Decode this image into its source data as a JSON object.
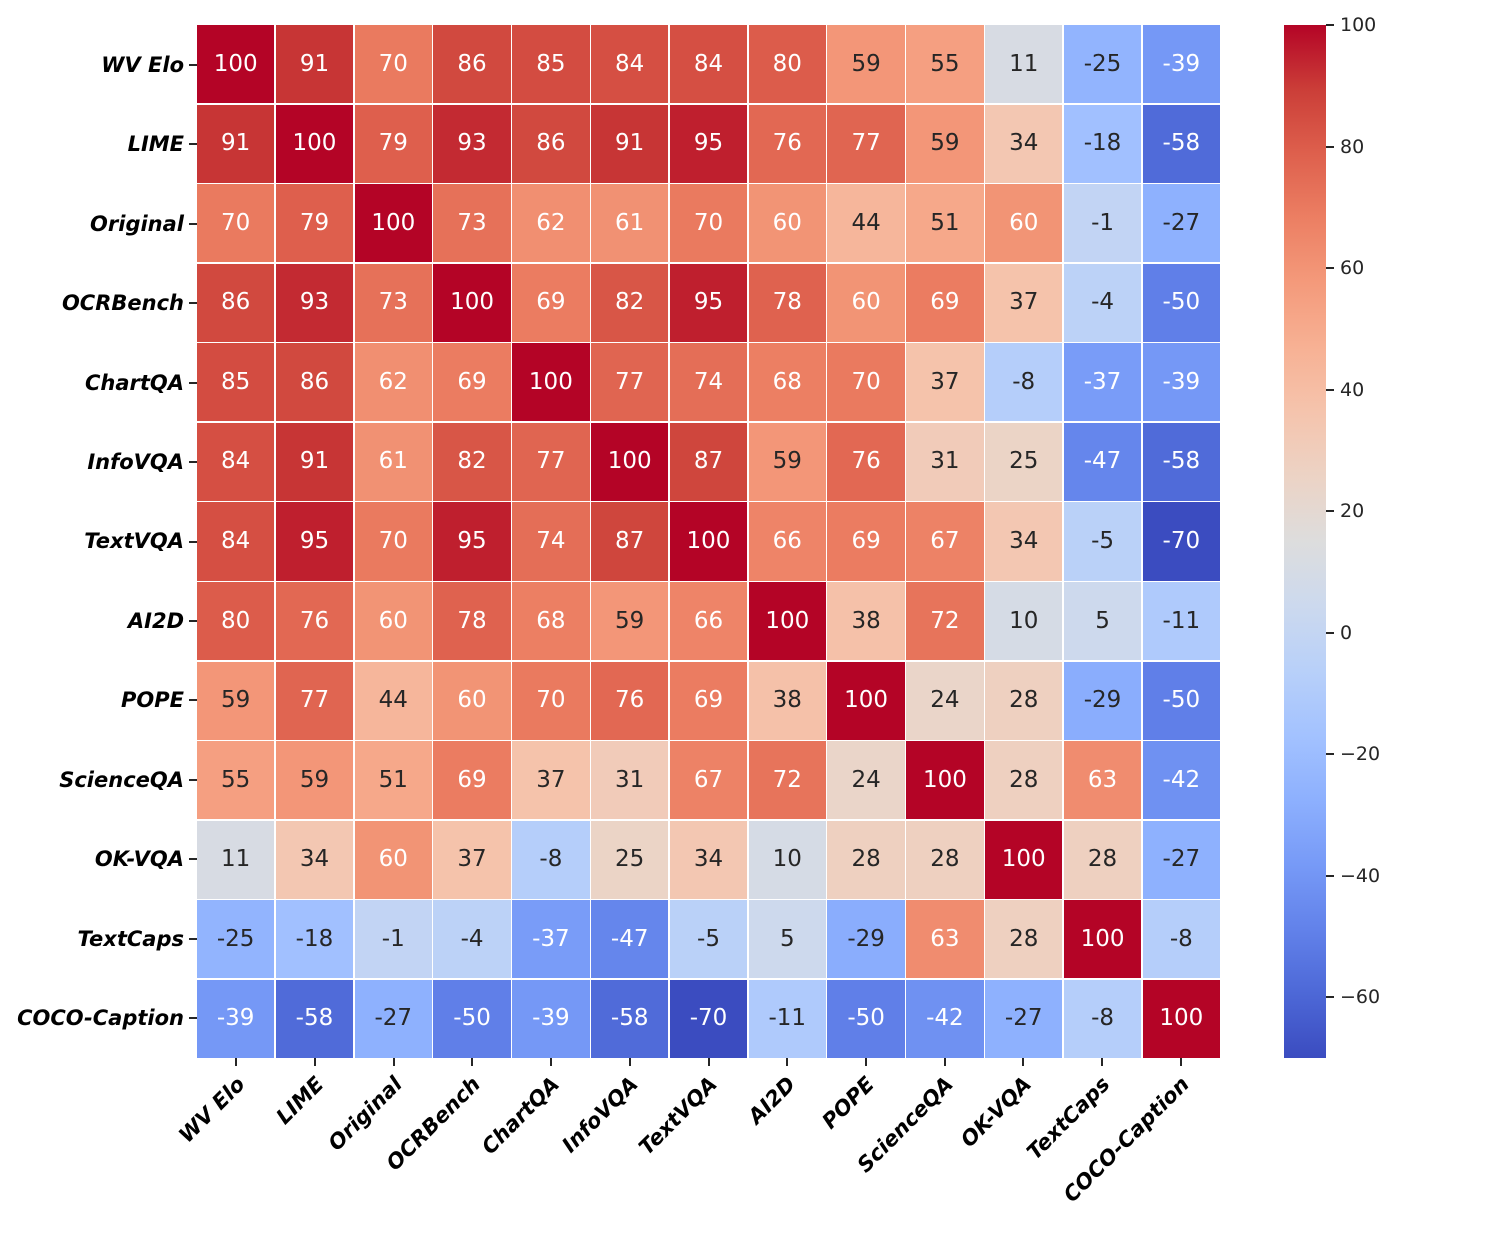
{
  "chart_data": {
    "type": "heatmap",
    "title": "",
    "labels": [
      "WV Elo",
      "LIME",
      "Original",
      "OCRBench",
      "ChartQA",
      "InfoVQA",
      "TextVQA",
      "AI2D",
      "POPE",
      "ScienceQA",
      "OK-VQA",
      "TextCaps",
      "COCO-Caption"
    ],
    "matrix": [
      [
        100,
        91,
        70,
        86,
        85,
        84,
        84,
        80,
        59,
        55,
        11,
        -25,
        -39
      ],
      [
        91,
        100,
        79,
        93,
        86,
        91,
        95,
        76,
        77,
        59,
        34,
        -18,
        -58
      ],
      [
        70,
        79,
        100,
        73,
        62,
        61,
        70,
        60,
        44,
        51,
        60,
        -1,
        -27
      ],
      [
        86,
        93,
        73,
        100,
        69,
        82,
        95,
        78,
        60,
        69,
        37,
        -4,
        -50
      ],
      [
        85,
        86,
        62,
        69,
        100,
        77,
        74,
        68,
        70,
        37,
        -8,
        -37,
        -39
      ],
      [
        84,
        91,
        61,
        82,
        77,
        100,
        87,
        59,
        76,
        31,
        25,
        -47,
        -58
      ],
      [
        84,
        95,
        70,
        95,
        74,
        87,
        100,
        66,
        69,
        67,
        34,
        -5,
        -70
      ],
      [
        80,
        76,
        60,
        78,
        68,
        59,
        66,
        100,
        38,
        72,
        10,
        5,
        -11
      ],
      [
        59,
        77,
        44,
        60,
        70,
        76,
        69,
        38,
        100,
        24,
        28,
        -29,
        -50
      ],
      [
        55,
        59,
        51,
        69,
        37,
        31,
        67,
        72,
        24,
        100,
        28,
        63,
        -42
      ],
      [
        11,
        34,
        60,
        37,
        -8,
        25,
        34,
        10,
        28,
        28,
        100,
        28,
        -27
      ],
      [
        -25,
        -18,
        -1,
        -4,
        -37,
        -47,
        -5,
        5,
        -29,
        63,
        28,
        100,
        -8
      ],
      [
        -39,
        -58,
        -27,
        -50,
        -39,
        -58,
        -70,
        -11,
        -50,
        -42,
        -27,
        -8,
        100
      ]
    ],
    "colorbar": {
      "vmin": -70,
      "vmax": 100,
      "tick_values": [
        100,
        80,
        60,
        40,
        20,
        0,
        -20,
        -40,
        -60
      ],
      "tick_labels": [
        "100",
        "80",
        "60",
        "40",
        "20",
        "0",
        "−20",
        "−40",
        "−60"
      ]
    },
    "colormap_name": "coolwarm",
    "colormap_stops": [
      [
        0.0,
        59,
        76,
        192
      ],
      [
        0.0625,
        77,
        104,
        215
      ],
      [
        0.125,
        98,
        130,
        234
      ],
      [
        0.1875,
        119,
        154,
        247
      ],
      [
        0.25,
        141,
        176,
        254
      ],
      [
        0.3125,
        163,
        194,
        255
      ],
      [
        0.375,
        184,
        208,
        249
      ],
      [
        0.4375,
        204,
        217,
        238
      ],
      [
        0.5,
        221,
        221,
        221
      ],
      [
        0.5625,
        236,
        211,
        197
      ],
      [
        0.625,
        245,
        196,
        173
      ],
      [
        0.6875,
        247,
        177,
        148
      ],
      [
        0.75,
        244,
        154,
        123
      ],
      [
        0.8125,
        236,
        127,
        99
      ],
      [
        0.875,
        222,
        96,
        77
      ],
      [
        0.9375,
        203,
        62,
        56
      ],
      [
        1.0,
        180,
        4,
        38
      ]
    ],
    "annotation_text_dark": "#262626",
    "annotation_text_light": "#ffffff",
    "grid_line_color": "#ffffff",
    "legend_position": "right"
  }
}
